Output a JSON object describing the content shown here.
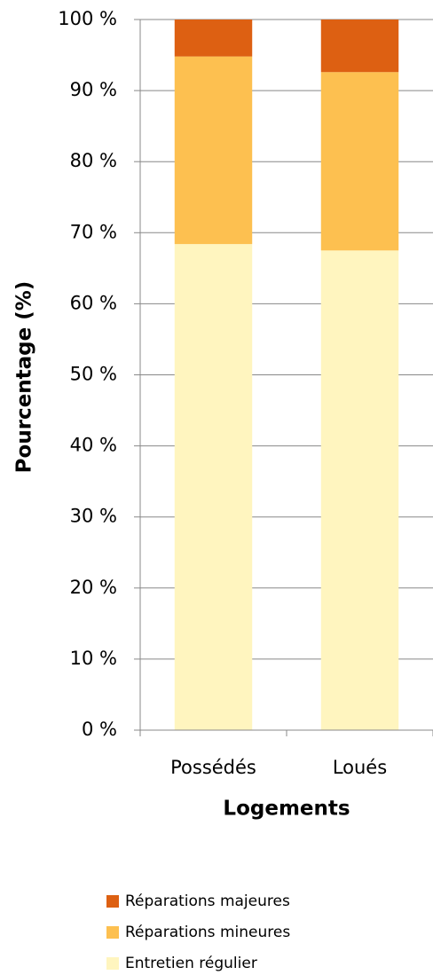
{
  "chart_data": {
    "type": "stacked_bar",
    "x_label": "Logements",
    "y_label": "Pourcentage (%)",
    "categories": [
      "Possédés",
      "Loués"
    ],
    "series": [
      {
        "name": "Entretien régulier",
        "color": "#fff5bf",
        "values": [
          68.4,
          67.5
        ]
      },
      {
        "name": "Réparations mineures",
        "color": "#fdc050",
        "values": [
          26.4,
          25.1
        ]
      },
      {
        "name": "Réparations majeures",
        "color": "#dd6012",
        "values": [
          5.2,
          7.4
        ]
      }
    ],
    "ylim": [
      0,
      100
    ],
    "yticks": [
      {
        "value": 0,
        "label": "0 %"
      },
      {
        "value": 10,
        "label": "10 %"
      },
      {
        "value": 20,
        "label": "20 %"
      },
      {
        "value": 30,
        "label": "30 %"
      },
      {
        "value": 40,
        "label": "40 %"
      },
      {
        "value": 50,
        "label": "50 %"
      },
      {
        "value": 60,
        "label": "60 %"
      },
      {
        "value": 70,
        "label": "70 %"
      },
      {
        "value": 80,
        "label": "80 %"
      },
      {
        "value": 90,
        "label": "90 %"
      },
      {
        "value": 100,
        "label": "100 %"
      }
    ],
    "grid": true
  }
}
